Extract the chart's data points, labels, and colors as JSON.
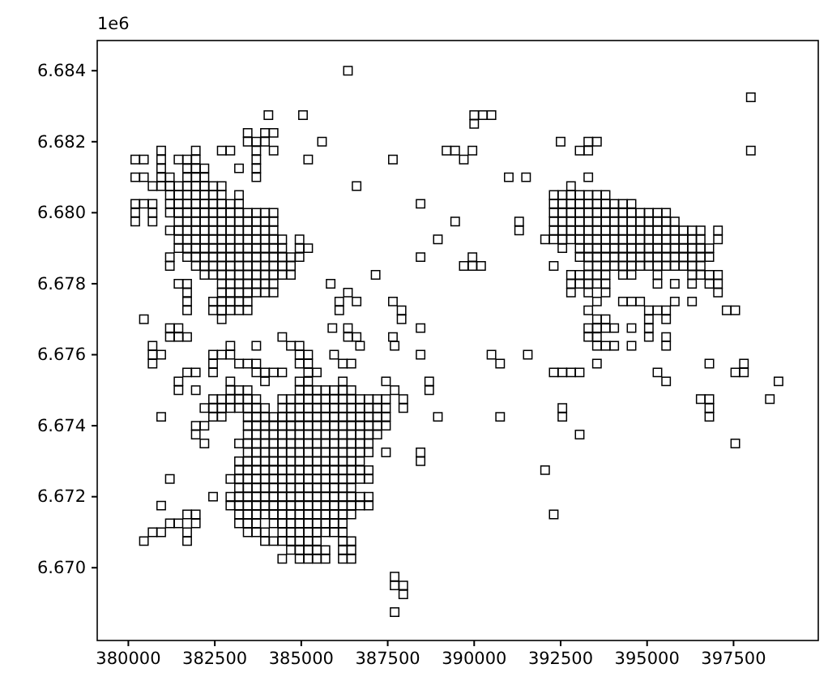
{
  "chart_data": {
    "type": "scatter",
    "color": "#000000",
    "marker": "square",
    "xlim": [
      379100,
      399950
    ],
    "ylim": [
      6.66795,
      6.68485
    ],
    "xticks": [
      380000,
      382500,
      385000,
      387500,
      390000,
      392500,
      395000,
      397500
    ],
    "yticks": [
      {
        "value": 6.67,
        "label": "6.670"
      },
      6.672,
      6.674,
      6.676,
      6.678,
      {
        "value": 6.68,
        "label": "6.680"
      },
      6.682,
      6.684
    ],
    "annotations": [
      "1e6"
    ],
    "x": [
      386350,
      398000,
      384050,
      385050,
      390000,
      390250,
      390500,
      390000,
      383450,
      383950,
      384200,
      383450,
      383700,
      383950,
      385600,
      392500,
      393300,
      393550,
      380950,
      381950,
      382700,
      382950,
      383700,
      384200,
      389200,
      389450,
      389950,
      393050,
      393300,
      398000,
      380200,
      380450,
      380950,
      381450,
      381700,
      381950,
      383700,
      385200,
      387650,
      389700,
      380950,
      381700,
      381950,
      382200,
      383200,
      383700,
      380200,
      380450,
      380950,
      381200,
      381700,
      381950,
      382200,
      383700,
      391000,
      391500,
      393300,
      380700,
      380950,
      381200,
      381450,
      381700,
      381950,
      382200,
      382450,
      382700,
      386600,
      392800,
      381200,
      381450,
      381700,
      381950,
      382200,
      382450,
      382700,
      383200,
      392300,
      392550,
      392800,
      393050,
      393300,
      393550,
      393800,
      380200,
      380450,
      380700,
      381200,
      381450,
      381700,
      381950,
      382200,
      382450,
      382700,
      382950,
      383200,
      388450,
      392300,
      392550,
      392800,
      393050,
      393300,
      393550,
      393800,
      394050,
      394300,
      394550,
      380200,
      380700,
      381200,
      381450,
      381700,
      381950,
      382200,
      382450,
      382700,
      382950,
      383200,
      383450,
      383700,
      383950,
      384200,
      392300,
      392550,
      392800,
      393050,
      393300,
      393550,
      393800,
      394050,
      394300,
      394550,
      394800,
      395050,
      395300,
      395550,
      380200,
      380700,
      381450,
      381700,
      381950,
      382200,
      382450,
      382700,
      382950,
      383200,
      383450,
      383700,
      383950,
      384200,
      389450,
      391300,
      392300,
      392550,
      392800,
      393050,
      393300,
      393550,
      393800,
      394050,
      394300,
      394550,
      394800,
      395050,
      395300,
      395550,
      395800,
      381200,
      381450,
      381700,
      381950,
      382200,
      382450,
      382700,
      382950,
      383200,
      383450,
      383700,
      383950,
      384200,
      391300,
      392300,
      392550,
      392800,
      393050,
      393300,
      393550,
      393800,
      394050,
      394300,
      394550,
      394800,
      395050,
      395300,
      395550,
      395800,
      396050,
      396300,
      396550,
      397050,
      381450,
      381700,
      381950,
      382200,
      382450,
      382700,
      382950,
      383200,
      383450,
      383700,
      383950,
      384200,
      384450,
      384950,
      388950,
      392050,
      392300,
      392550,
      392800,
      393050,
      393300,
      393550,
      393800,
      394050,
      394300,
      394550,
      394800,
      395050,
      395300,
      395550,
      395800,
      396050,
      396300,
      396550,
      397050,
      381450,
      381700,
      381950,
      382200,
      382450,
      382700,
      382950,
      383200,
      383450,
      383700,
      383950,
      384200,
      384450,
      384950,
      385200,
      392550,
      393050,
      393300,
      393550,
      393800,
      394050,
      394300,
      394550,
      394800,
      395050,
      395300,
      395550,
      395800,
      396050,
      396300,
      396550,
      396800,
      381200,
      381700,
      381950,
      382200,
      382450,
      382700,
      382950,
      383200,
      383450,
      383700,
      383950,
      384200,
      384450,
      384700,
      384950,
      388450,
      389950,
      393050,
      393300,
      393550,
      393800,
      394050,
      394300,
      394550,
      394800,
      395050,
      395300,
      395550,
      395800,
      396050,
      396300,
      396550,
      396800,
      381200,
      381950,
      382200,
      382450,
      382700,
      382950,
      383200,
      383450,
      383700,
      383950,
      384200,
      384450,
      384700,
      389700,
      389950,
      390200,
      392300,
      393300,
      393550,
      393800,
      394050,
      394300,
      394550,
      394800,
      395050,
      395300,
      395550,
      395800,
      396050,
      396300,
      396550,
      382200,
      382450,
      382700,
      382950,
      383200,
      383450,
      383700,
      383950,
      384200,
      384450,
      384700,
      387150,
      392800,
      393050,
      393300,
      393550,
      393800,
      394300,
      394550,
      395300,
      396300,
      396550,
      396800,
      397050,
      381450,
      381700,
      382700,
      382950,
      383200,
      383450,
      383700,
      383950,
      384200,
      385850,
      392800,
      393050,
      393300,
      393550,
      393800,
      395300,
      395800,
      396300,
      396800,
      397050,
      381700,
      382700,
      382950,
      383200,
      383450,
      383700,
      383950,
      384200,
      386350,
      392800,
      393300,
      393800,
      397050,
      381700,
      382450,
      382700,
      382950,
      383200,
      383450,
      386100,
      386600,
      387650,
      393550,
      394300,
      394550,
      394800,
      395800,
      396300,
      381700,
      382450,
      382700,
      382950,
      383200,
      383450,
      386100,
      387900,
      393300,
      395050,
      395300,
      395550,
      397300,
      397550,
      380450,
      382700,
      387900,
      393550,
      393800,
      395050,
      395550,
      381200,
      381450,
      385900,
      386350,
      388450,
      393300,
      393550,
      393800,
      394050,
      394550,
      395050,
      381200,
      381450,
      381700,
      384450,
      386350,
      386600,
      387650,
      393300,
      393550,
      395050,
      395550,
      380700,
      382950,
      383700,
      384700,
      384950,
      386700,
      387700,
      393550,
      393800,
      394050,
      394550,
      395550,
      380700,
      380950,
      382450,
      382700,
      382950,
      384950,
      385200,
      385950,
      388450,
      380700,
      382450,
      383200,
      383450,
      383700,
      384950,
      385200,
      386200,
      386450,
      393550,
      396800,
      397800,
      381700,
      381950,
      382450,
      383700,
      383950,
      384200,
      384450,
      385200,
      385450,
      392300,
      392550,
      392800,
      393050,
      395300,
      397550,
      397800,
      381450,
      382950,
      383950,
      384950,
      385200,
      386200,
      387450,
      388700,
      395550,
      398800,
      381450,
      381950,
      382950,
      383200,
      383450,
      384950,
      385200,
      385450,
      385700,
      385950,
      386200,
      386450,
      387700,
      388700,
      382450,
      382700,
      382950,
      383200,
      383450,
      383700,
      384450,
      384700,
      384950,
      385200,
      385450,
      385700,
      385950,
      386200,
      386450,
      386700,
      386950,
      387200,
      387450,
      387950,
      396550,
      396800,
      398550,
      382200,
      382450,
      382700,
      382950,
      383200,
      383450,
      383700,
      383950,
      384450,
      384700,
      384950,
      385200,
      385450,
      385700,
      385950,
      386200,
      386450,
      386700,
      386950,
      387200,
      387450,
      387950,
      392550,
      396800,
      380950,
      382450,
      382700,
      383450,
      383700,
      383950,
      384200,
      384450,
      384700,
      384950,
      385200,
      385450,
      385700,
      385950,
      386200,
      386450,
      386700,
      386950,
      387200,
      387450,
      388950,
      392550,
      396800,
      381950,
      382200,
      383450,
      383700,
      383950,
      384200,
      384450,
      384700,
      384950,
      385200,
      385450,
      385700,
      385950,
      386200,
      386450,
      386700,
      386950,
      387200,
      387450,
      381950,
      383450,
      383700,
      383950,
      384200,
      384450,
      384700,
      384950,
      385200,
      385450,
      385700,
      385950,
      386200,
      386450,
      386700,
      386950,
      387200,
      393050,
      382200,
      383200,
      383450,
      383700,
      383950,
      384200,
      384450,
      384700,
      384950,
      385200,
      385450,
      385700,
      385950,
      386200,
      386450,
      386700,
      386950,
      397550,
      383450,
      383700,
      383950,
      384200,
      384450,
      384700,
      384950,
      385200,
      385450,
      385700,
      385950,
      386200,
      386450,
      386700,
      386950,
      387450,
      388450,
      383200,
      383450,
      383700,
      383950,
      384200,
      384450,
      384700,
      384950,
      385200,
      385450,
      385700,
      385950,
      386200,
      386450,
      386700,
      388450,
      383200,
      383450,
      383700,
      383950,
      384200,
      384450,
      384700,
      384950,
      385200,
      385450,
      385700,
      385950,
      386200,
      386450,
      386700,
      386950,
      392050,
      381200,
      382950,
      383200,
      383450,
      383700,
      383950,
      384200,
      384450,
      384700,
      384950,
      385200,
      385450,
      385700,
      385950,
      386200,
      386450,
      386700,
      386950,
      383200,
      383450,
      383700,
      383950,
      384200,
      384450,
      384700,
      384950,
      385200,
      385450,
      385700,
      385950,
      386200,
      386450,
      382450,
      382950,
      383200,
      383450,
      383700,
      383950,
      384200,
      384450,
      384700,
      384950,
      385200,
      385450,
      385700,
      385950,
      386200,
      386450,
      386700,
      386950,
      380950,
      382950,
      383200,
      383450,
      383700,
      383950,
      384200,
      384450,
      384700,
      384950,
      385200,
      385450,
      385700,
      385950,
      386200,
      386450,
      386700,
      386950,
      381700,
      381950,
      383200,
      383450,
      383700,
      383950,
      384200,
      384450,
      384700,
      384950,
      385200,
      385450,
      385700,
      385950,
      386200,
      386450,
      392300,
      381200,
      381450,
      381950,
      383200,
      383450,
      383700,
      384200,
      384450,
      384700,
      384950,
      385200,
      385450,
      385700,
      385950,
      386200,
      380700,
      380950,
      381700,
      383450,
      383700,
      383950,
      384450,
      384700,
      384950,
      385200,
      385450,
      385700,
      385950,
      386200,
      380450,
      381700,
      383950,
      384200,
      384450,
      384700,
      384950,
      385200,
      385450,
      386200,
      386450,
      384700,
      384950,
      385200,
      385450,
      385700,
      386200,
      386450,
      384450,
      384950,
      385200,
      385450,
      385700,
      386200,
      386450,
      387700,
      387700,
      387950,
      387950,
      387700,
      391550,
      390500,
      390750,
      390750
    ],
    "values": [
      6.684,
      6.68325,
      6.68275,
      6.68275,
      6.68275,
      6.68275,
      6.68275,
      6.6825,
      6.68225,
      6.68225,
      6.68225,
      6.682,
      6.682,
      6.682,
      6.682,
      6.682,
      6.682,
      6.682,
      6.68175,
      6.68175,
      6.68175,
      6.68175,
      6.68175,
      6.68175,
      6.68175,
      6.68175,
      6.68175,
      6.68175,
      6.68175,
      6.68175,
      6.6815,
      6.6815,
      6.6815,
      6.6815,
      6.6815,
      6.6815,
      6.6815,
      6.6815,
      6.6815,
      6.6815,
      6.68125,
      6.68125,
      6.68125,
      6.68125,
      6.68125,
      6.68125,
      6.681,
      6.681,
      6.681,
      6.681,
      6.681,
      6.681,
      6.681,
      6.681,
      6.681,
      6.681,
      6.681,
      6.68075,
      6.68075,
      6.68075,
      6.68075,
      6.68075,
      6.68075,
      6.68075,
      6.68075,
      6.68075,
      6.68075,
      6.68075,
      6.6805,
      6.6805,
      6.6805,
      6.6805,
      6.6805,
      6.6805,
      6.6805,
      6.6805,
      6.6805,
      6.6805,
      6.6805,
      6.6805,
      6.6805,
      6.6805,
      6.6805,
      6.68025,
      6.68025,
      6.68025,
      6.68025,
      6.68025,
      6.68025,
      6.68025,
      6.68025,
      6.68025,
      6.68025,
      6.68025,
      6.68025,
      6.68025,
      6.68025,
      6.68025,
      6.68025,
      6.68025,
      6.68025,
      6.68025,
      6.68025,
      6.68025,
      6.68025,
      6.68025,
      6.68,
      6.68,
      6.68,
      6.68,
      6.68,
      6.68,
      6.68,
      6.68,
      6.68,
      6.68,
      6.68,
      6.68,
      6.68,
      6.68,
      6.68,
      6.68,
      6.68,
      6.68,
      6.68,
      6.68,
      6.68,
      6.68,
      6.68,
      6.68,
      6.68,
      6.68,
      6.68,
      6.68,
      6.68,
      6.67975,
      6.67975,
      6.67975,
      6.67975,
      6.67975,
      6.67975,
      6.67975,
      6.67975,
      6.67975,
      6.67975,
      6.67975,
      6.67975,
      6.67975,
      6.67975,
      6.67975,
      6.67975,
      6.67975,
      6.67975,
      6.67975,
      6.67975,
      6.67975,
      6.67975,
      6.67975,
      6.67975,
      6.67975,
      6.67975,
      6.67975,
      6.67975,
      6.67975,
      6.67975,
      6.67975,
      6.6795,
      6.6795,
      6.6795,
      6.6795,
      6.6795,
      6.6795,
      6.6795,
      6.6795,
      6.6795,
      6.6795,
      6.6795,
      6.6795,
      6.6795,
      6.6795,
      6.6795,
      6.6795,
      6.6795,
      6.6795,
      6.6795,
      6.6795,
      6.6795,
      6.6795,
      6.6795,
      6.6795,
      6.6795,
      6.6795,
      6.6795,
      6.6795,
      6.6795,
      6.6795,
      6.6795,
      6.6795,
      6.6795,
      6.67925,
      6.67925,
      6.67925,
      6.67925,
      6.67925,
      6.67925,
      6.67925,
      6.67925,
      6.67925,
      6.67925,
      6.67925,
      6.67925,
      6.67925,
      6.67925,
      6.67925,
      6.67925,
      6.67925,
      6.67925,
      6.67925,
      6.67925,
      6.67925,
      6.67925,
      6.67925,
      6.67925,
      6.67925,
      6.67925,
      6.67925,
      6.67925,
      6.67925,
      6.67925,
      6.67925,
      6.67925,
      6.67925,
      6.67925,
      6.67925,
      6.679,
      6.679,
      6.679,
      6.679,
      6.679,
      6.679,
      6.679,
      6.679,
      6.679,
      6.679,
      6.679,
      6.679,
      6.679,
      6.679,
      6.679,
      6.679,
      6.679,
      6.679,
      6.679,
      6.679,
      6.679,
      6.679,
      6.679,
      6.679,
      6.679,
      6.679,
      6.679,
      6.679,
      6.679,
      6.679,
      6.679,
      6.679,
      6.67875,
      6.67875,
      6.67875,
      6.67875,
      6.67875,
      6.67875,
      6.67875,
      6.67875,
      6.67875,
      6.67875,
      6.67875,
      6.67875,
      6.67875,
      6.67875,
      6.67875,
      6.67875,
      6.67875,
      6.67875,
      6.67875,
      6.67875,
      6.67875,
      6.67875,
      6.67875,
      6.67875,
      6.67875,
      6.67875,
      6.67875,
      6.67875,
      6.67875,
      6.67875,
      6.67875,
      6.67875,
      6.67875,
      6.6785,
      6.6785,
      6.6785,
      6.6785,
      6.6785,
      6.6785,
      6.6785,
      6.6785,
      6.6785,
      6.6785,
      6.6785,
      6.6785,
      6.6785,
      6.6785,
      6.6785,
      6.6785,
      6.6785,
      6.6785,
      6.6785,
      6.6785,
      6.6785,
      6.6785,
      6.6785,
      6.6785,
      6.6785,
      6.6785,
      6.6785,
      6.6785,
      6.6785,
      6.6785,
      6.6785,
      6.67825,
      6.67825,
      6.67825,
      6.67825,
      6.67825,
      6.67825,
      6.67825,
      6.67825,
      6.67825,
      6.67825,
      6.67825,
      6.67825,
      6.67825,
      6.67825,
      6.67825,
      6.67825,
      6.67825,
      6.67825,
      6.67825,
      6.67825,
      6.67825,
      6.67825,
      6.67825,
      6.67825,
      6.678,
      6.678,
      6.678,
      6.678,
      6.678,
      6.678,
      6.678,
      6.678,
      6.678,
      6.678,
      6.678,
      6.678,
      6.678,
      6.678,
      6.678,
      6.678,
      6.678,
      6.678,
      6.678,
      6.678,
      6.67775,
      6.67775,
      6.67775,
      6.67775,
      6.67775,
      6.67775,
      6.67775,
      6.67775,
      6.67775,
      6.67775,
      6.67775,
      6.67775,
      6.67775,
      6.6775,
      6.6775,
      6.6775,
      6.6775,
      6.6775,
      6.6775,
      6.6775,
      6.6775,
      6.6775,
      6.6775,
      6.6775,
      6.6775,
      6.6775,
      6.6775,
      6.6775,
      6.67725,
      6.67725,
      6.67725,
      6.67725,
      6.67725,
      6.67725,
      6.67725,
      6.67725,
      6.67725,
      6.67725,
      6.67725,
      6.67725,
      6.67725,
      6.67725,
      6.677,
      6.677,
      6.677,
      6.677,
      6.677,
      6.677,
      6.677,
      6.67675,
      6.67675,
      6.67675,
      6.67675,
      6.67675,
      6.67675,
      6.67675,
      6.67675,
      6.67675,
      6.67675,
      6.67675,
      6.6765,
      6.6765,
      6.6765,
      6.6765,
      6.6765,
      6.6765,
      6.6765,
      6.6765,
      6.6765,
      6.6765,
      6.6765,
      6.67625,
      6.67625,
      6.67625,
      6.67625,
      6.67625,
      6.67625,
      6.67625,
      6.67625,
      6.67625,
      6.67625,
      6.67625,
      6.67625,
      6.676,
      6.676,
      6.676,
      6.676,
      6.676,
      6.676,
      6.676,
      6.676,
      6.676,
      6.67575,
      6.67575,
      6.67575,
      6.67575,
      6.67575,
      6.67575,
      6.67575,
      6.67575,
      6.67575,
      6.67575,
      6.67575,
      6.67575,
      6.6755,
      6.6755,
      6.6755,
      6.6755,
      6.6755,
      6.6755,
      6.6755,
      6.6755,
      6.6755,
      6.6755,
      6.6755,
      6.6755,
      6.6755,
      6.6755,
      6.6755,
      6.6755,
      6.67525,
      6.67525,
      6.67525,
      6.67525,
      6.67525,
      6.67525,
      6.67525,
      6.67525,
      6.67525,
      6.67525,
      6.675,
      6.675,
      6.675,
      6.675,
      6.675,
      6.675,
      6.675,
      6.675,
      6.675,
      6.675,
      6.675,
      6.675,
      6.675,
      6.675,
      6.67475,
      6.67475,
      6.67475,
      6.67475,
      6.67475,
      6.67475,
      6.67475,
      6.67475,
      6.67475,
      6.67475,
      6.67475,
      6.67475,
      6.67475,
      6.67475,
      6.67475,
      6.67475,
      6.67475,
      6.67475,
      6.67475,
      6.67475,
      6.67475,
      6.67475,
      6.67475,
      6.6745,
      6.6745,
      6.6745,
      6.6745,
      6.6745,
      6.6745,
      6.6745,
      6.6745,
      6.6745,
      6.6745,
      6.6745,
      6.6745,
      6.6745,
      6.6745,
      6.6745,
      6.6745,
      6.6745,
      6.6745,
      6.6745,
      6.6745,
      6.6745,
      6.6745,
      6.6745,
      6.6745,
      6.67425,
      6.67425,
      6.67425,
      6.67425,
      6.67425,
      6.67425,
      6.67425,
      6.67425,
      6.67425,
      6.67425,
      6.67425,
      6.67425,
      6.67425,
      6.67425,
      6.67425,
      6.67425,
      6.67425,
      6.67425,
      6.67425,
      6.67425,
      6.67425,
      6.67425,
      6.67425,
      6.674,
      6.674,
      6.674,
      6.674,
      6.674,
      6.674,
      6.674,
      6.674,
      6.674,
      6.674,
      6.674,
      6.674,
      6.674,
      6.674,
      6.674,
      6.674,
      6.674,
      6.674,
      6.674,
      6.67375,
      6.67375,
      6.67375,
      6.67375,
      6.67375,
      6.67375,
      6.67375,
      6.67375,
      6.67375,
      6.67375,
      6.67375,
      6.67375,
      6.67375,
      6.67375,
      6.67375,
      6.67375,
      6.67375,
      6.67375,
      6.6735,
      6.6735,
      6.6735,
      6.6735,
      6.6735,
      6.6735,
      6.6735,
      6.6735,
      6.6735,
      6.6735,
      6.6735,
      6.6735,
      6.6735,
      6.6735,
      6.6735,
      6.6735,
      6.6735,
      6.6735,
      6.67325,
      6.67325,
      6.67325,
      6.67325,
      6.67325,
      6.67325,
      6.67325,
      6.67325,
      6.67325,
      6.67325,
      6.67325,
      6.67325,
      6.67325,
      6.67325,
      6.67325,
      6.67325,
      6.67325,
      6.673,
      6.673,
      6.673,
      6.673,
      6.673,
      6.673,
      6.673,
      6.673,
      6.673,
      6.673,
      6.673,
      6.673,
      6.673,
      6.673,
      6.673,
      6.673,
      6.67275,
      6.67275,
      6.67275,
      6.67275,
      6.67275,
      6.67275,
      6.67275,
      6.67275,
      6.67275,
      6.67275,
      6.67275,
      6.67275,
      6.67275,
      6.67275,
      6.67275,
      6.67275,
      6.67275,
      6.6725,
      6.6725,
      6.6725,
      6.6725,
      6.6725,
      6.6725,
      6.6725,
      6.6725,
      6.6725,
      6.6725,
      6.6725,
      6.6725,
      6.6725,
      6.6725,
      6.6725,
      6.6725,
      6.6725,
      6.6725,
      6.67225,
      6.67225,
      6.67225,
      6.67225,
      6.67225,
      6.67225,
      6.67225,
      6.67225,
      6.67225,
      6.67225,
      6.67225,
      6.67225,
      6.67225,
      6.67225,
      6.672,
      6.672,
      6.672,
      6.672,
      6.672,
      6.672,
      6.672,
      6.672,
      6.672,
      6.672,
      6.672,
      6.672,
      6.672,
      6.672,
      6.672,
      6.672,
      6.672,
      6.672,
      6.67175,
      6.67175,
      6.67175,
      6.67175,
      6.67175,
      6.67175,
      6.67175,
      6.67175,
      6.67175,
      6.67175,
      6.67175,
      6.67175,
      6.67175,
      6.67175,
      6.67175,
      6.67175,
      6.67175,
      6.67175,
      6.6715,
      6.6715,
      6.6715,
      6.6715,
      6.6715,
      6.6715,
      6.6715,
      6.6715,
      6.6715,
      6.6715,
      6.6715,
      6.6715,
      6.6715,
      6.6715,
      6.6715,
      6.6715,
      6.6715,
      6.67125,
      6.67125,
      6.67125,
      6.67125,
      6.67125,
      6.67125,
      6.67125,
      6.67125,
      6.67125,
      6.67125,
      6.67125,
      6.67125,
      6.67125,
      6.67125,
      6.67125,
      6.671,
      6.671,
      6.671,
      6.671,
      6.671,
      6.671,
      6.671,
      6.671,
      6.671,
      6.671,
      6.671,
      6.671,
      6.671,
      6.671,
      6.67075,
      6.67075,
      6.67075,
      6.67075,
      6.67075,
      6.67075,
      6.67075,
      6.67075,
      6.67075,
      6.67075,
      6.67075,
      6.6705,
      6.6705,
      6.6705,
      6.6705,
      6.6705,
      6.6705,
      6.6705,
      6.67025,
      6.67025,
      6.67025,
      6.67025,
      6.67025,
      6.67025,
      6.67025,
      6.66975,
      6.6695,
      6.6695,
      6.66925,
      6.66875,
      6.676,
      6.676,
      6.67575,
      6.67425
    ]
  }
}
